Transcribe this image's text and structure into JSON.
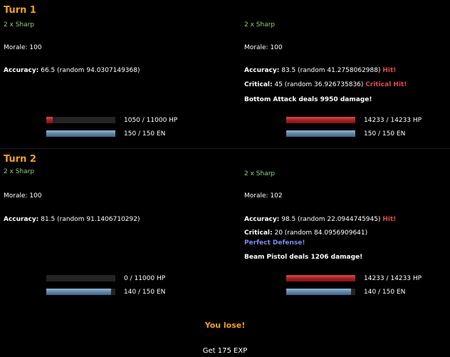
{
  "turns": [
    {
      "title": "Turn 1",
      "left": {
        "status": "2 x Sharp",
        "morale": "Morale: 100",
        "accuracy_label": "Accuracy:",
        "accuracy_value": " 66.5 (random 94.0307149368)",
        "hp_text": "1050 / 11000 HP",
        "hp_fraction": 0.095,
        "en_text": "150 / 150 EN",
        "en_fraction": 1.0
      },
      "right": {
        "status": "2 x Sharp",
        "morale": "Morale: 100",
        "accuracy_label": "Accuracy:",
        "accuracy_value": " 83.5 (random 41.2758062988) ",
        "accuracy_result": "Hit!",
        "critical_label": "Critical:",
        "critical_value": " 45 (random 36.926735836) ",
        "critical_result": "Critical Hit!",
        "damage": "Bottom Attack deals 9950 damage!",
        "hp_text": "14233 / 14233 HP",
        "hp_fraction": 1.0,
        "en_text": "150 / 150 EN",
        "en_fraction": 1.0
      }
    },
    {
      "title": "Turn 2",
      "left": {
        "status": "2 x Sharp",
        "morale": "Morale: 100",
        "accuracy_label": "Accuracy:",
        "accuracy_value": " 81.5 (random 91.1406710292)",
        "hp_text": "0 / 11000 HP",
        "hp_fraction": 0.0,
        "en_text": "140 / 150 EN",
        "en_fraction": 0.933
      },
      "right": {
        "status": "2 x Sharp",
        "morale": "Morale: 102",
        "accuracy_label": "Accuracy:",
        "accuracy_value": " 98.5 (random 22.0944745945) ",
        "accuracy_result": "Hit!",
        "critical_label": "Critical:",
        "critical_value": " 20 (random 84.0956909641)",
        "defense_result": "Perfect Defense!",
        "damage": "Beam Pistol deals 1206 damage!",
        "hp_text": "14233 / 14233 HP",
        "hp_fraction": 1.0,
        "en_text": "140 / 150 EN",
        "en_fraction": 0.933
      }
    }
  ],
  "result": "You lose!",
  "reward": "Get 175 EXP"
}
